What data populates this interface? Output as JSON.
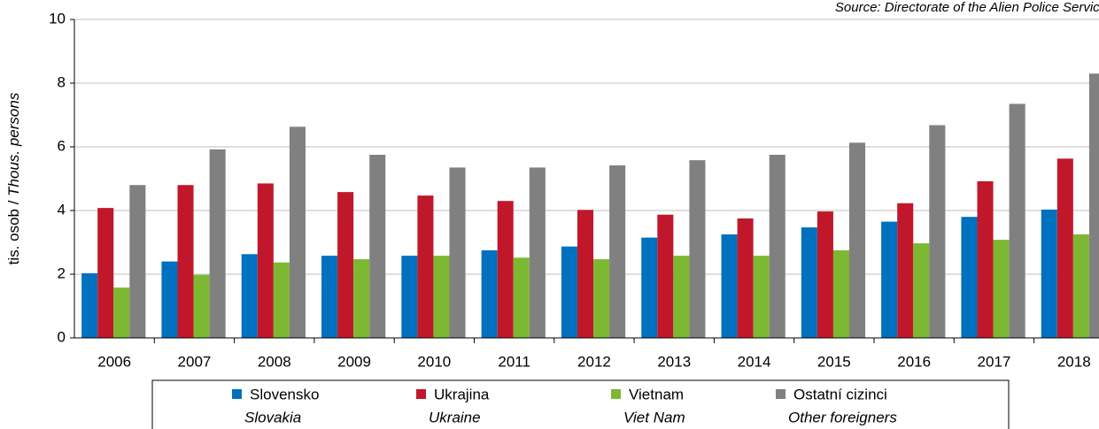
{
  "chart_data": {
    "type": "bar",
    "source": "Source: Directorate of the Alien Police Service",
    "y_label": "tis. osob / ",
    "y_label_en": "Thous. persons",
    "categories": [
      "2006",
      "2007",
      "2008",
      "2009",
      "2010",
      "2011",
      "2012",
      "2013",
      "2014",
      "2015",
      "2016",
      "2017",
      "2018"
    ],
    "series": [
      {
        "name": "Slovensko",
        "name_en": "Slovakia",
        "color": "#0070c0",
        "values": [
          2.03,
          2.4,
          2.63,
          2.58,
          2.58,
          2.75,
          2.87,
          3.15,
          3.25,
          3.47,
          3.65,
          3.8,
          4.03
        ]
      },
      {
        "name": "Ukrajina",
        "name_en": "Ukraine",
        "color": "#c0182a",
        "values": [
          4.08,
          4.8,
          4.85,
          4.58,
          4.47,
          4.3,
          4.02,
          3.87,
          3.75,
          3.97,
          4.23,
          4.92,
          5.63
        ]
      },
      {
        "name": "Vietnam",
        "name_en": "Viet Nam",
        "color": "#7cb832",
        "values": [
          1.58,
          1.98,
          2.37,
          2.47,
          2.58,
          2.52,
          2.47,
          2.58,
          2.58,
          2.75,
          2.97,
          3.08,
          3.25
        ]
      },
      {
        "name": "Ostatní cizinci",
        "name_en": "Other foreigners",
        "color": "#808080",
        "values": [
          4.8,
          5.92,
          6.63,
          5.75,
          5.35,
          5.35,
          5.42,
          5.58,
          5.75,
          6.13,
          6.68,
          7.35,
          8.3
        ]
      }
    ],
    "ylim": [
      0,
      10
    ],
    "yticks": [
      0,
      2,
      4,
      6,
      8,
      10
    ],
    "grid": true
  }
}
